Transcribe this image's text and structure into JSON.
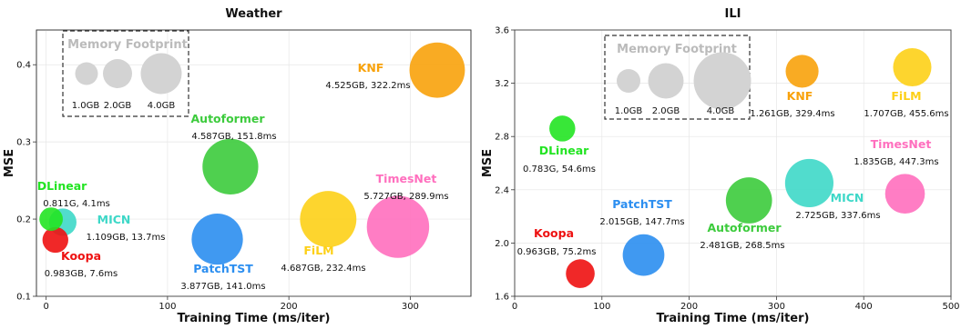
{
  "chart_data": [
    {
      "type": "scatter",
      "title": "Weather",
      "xlabel": "Training Time (ms/iter)",
      "ylabel": "MSE",
      "xlim": [
        -8,
        350
      ],
      "ylim": [
        0.1,
        0.445
      ],
      "xticks": [
        0,
        100,
        200,
        300
      ],
      "yticks": [
        0.1,
        0.2,
        0.3,
        0.4
      ],
      "grid": true,
      "series": [
        {
          "name": "KNF",
          "x": 322.2,
          "y": 0.393,
          "memory_gb": 4.525,
          "stat": "4.525GB, 322.2ms",
          "color": "#F8A20B"
        },
        {
          "name": "Autoformer",
          "x": 151.8,
          "y": 0.268,
          "memory_gb": 4.587,
          "stat": "4.587GB, 151.8ms",
          "color": "#3CCB3C"
        },
        {
          "name": "DLinear",
          "x": 4.1,
          "y": 0.2,
          "memory_gb": 0.811,
          "stat": "0.811G, 4.1ms",
          "color": "#22E422"
        },
        {
          "name": "MICN",
          "x": 13.7,
          "y": 0.196,
          "memory_gb": 1.109,
          "stat": "1.109GB, 13.7ms",
          "color": "#3ED8C8"
        },
        {
          "name": "Koopa",
          "x": 7.6,
          "y": 0.173,
          "memory_gb": 0.983,
          "stat": "0.983GB, 7.6ms",
          "color": "#EE1111"
        },
        {
          "name": "PatchTST",
          "x": 141.0,
          "y": 0.174,
          "memory_gb": 3.877,
          "stat": "3.877GB, 141.0ms",
          "color": "#2B8EF0"
        },
        {
          "name": "FiLM",
          "x": 232.4,
          "y": 0.2,
          "memory_gb": 4.687,
          "stat": "4.687GB, 232.4ms",
          "color": "#FDD017"
        },
        {
          "name": "TimesNet",
          "x": 289.9,
          "y": 0.19,
          "memory_gb": 5.727,
          "stat": "5.727GB, 289.9ms",
          "color": "#FF6FBE"
        }
      ],
      "legend": {
        "title": "Memory Footprint",
        "sizes": [
          "1.0GB",
          "2.0GB",
          "4.0GB"
        ],
        "size_values": [
          1.0,
          2.0,
          4.0
        ],
        "placement": "top-left"
      }
    },
    {
      "type": "scatter",
      "title": "ILI",
      "xlabel": "Training Time (ms/iter)",
      "ylabel": "MSE",
      "xlim": [
        0,
        500
      ],
      "ylim": [
        1.6,
        3.6
      ],
      "xticks": [
        0,
        100,
        200,
        300,
        400,
        500
      ],
      "yticks": [
        1.6,
        2.0,
        2.4,
        2.8,
        3.2,
        3.6
      ],
      "grid": true,
      "series": [
        {
          "name": "DLinear",
          "x": 54.6,
          "y": 2.86,
          "memory_gb": 0.783,
          "stat": "0.783G, 54.6ms",
          "color": "#22E422"
        },
        {
          "name": "KNF",
          "x": 329.4,
          "y": 3.29,
          "memory_gb": 1.261,
          "stat": "1.261GB, 329.4ms",
          "color": "#F8A20B"
        },
        {
          "name": "FiLM",
          "x": 455.6,
          "y": 3.32,
          "memory_gb": 1.707,
          "stat": "1.707GB, 455.6ms",
          "color": "#FDD017"
        },
        {
          "name": "TimesNet",
          "x": 447.3,
          "y": 2.37,
          "memory_gb": 1.835,
          "stat": "1.835GB, 447.3ms",
          "color": "#FF6FBE"
        },
        {
          "name": "MICN",
          "x": 337.6,
          "y": 2.45,
          "memory_gb": 2.725,
          "stat": "2.725GB, 337.6ms",
          "color": "#3ED8C8"
        },
        {
          "name": "Autoformer",
          "x": 268.5,
          "y": 2.32,
          "memory_gb": 2.481,
          "stat": "2.481GB, 268.5ms",
          "color": "#3CCB3C"
        },
        {
          "name": "PatchTST",
          "x": 147.7,
          "y": 1.91,
          "memory_gb": 2.015,
          "stat": "2.015GB, 147.7ms",
          "color": "#2B8EF0"
        },
        {
          "name": "Koopa",
          "x": 75.2,
          "y": 1.77,
          "memory_gb": 0.963,
          "stat": "0.963GB, 75.2ms",
          "color": "#EE1111"
        }
      ],
      "legend": {
        "title": "Memory Footprint",
        "sizes": [
          "1.0GB",
          "2.0GB",
          "4.0GB"
        ],
        "size_values": [
          1.0,
          2.0,
          4.0
        ],
        "placement": "top-left"
      }
    }
  ]
}
